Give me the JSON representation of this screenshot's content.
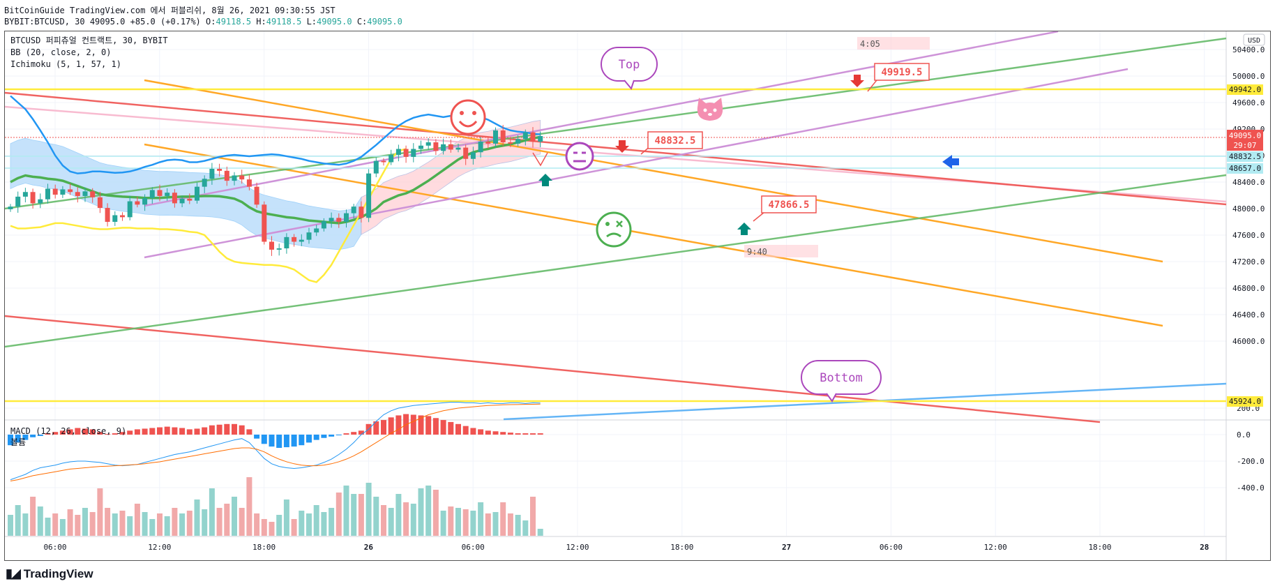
{
  "header": {
    "publish_line": "BitCoinGuide TradingView.com 에서 퍼블리쉬, 8월 26, 2021 09:30:55 JST",
    "symbol": "BYBIT:BTCUSD, 30",
    "last": "49095.0",
    "change": "+85.0 (+0.17%)",
    "o_label": "O:",
    "o": "49118.5",
    "h_label": "H:",
    "h": "49118.5",
    "l_label": "L:",
    "l": "49095.0",
    "c_label": "C:",
    "c": "49095.0"
  },
  "legend": {
    "line1": "BTCUSD 퍼피츄얼 컨트랙트, 30, BYBIT",
    "line2": "BB (20, close, 2, 0)",
    "line3": "Ichimoku (5, 1, 57, 1)",
    "macd": "MACD (12, 26, close, 9)",
    "volume": "볼륨"
  },
  "brand": "TradingView",
  "annotations": {
    "top": "Top",
    "bottom": "Bottom",
    "p1": "49919.5",
    "p2": "48832.5",
    "p3": "47866.5",
    "t1": "4:05",
    "t2": "9:40"
  },
  "price_tags": {
    "y1": "49942.0",
    "cur": "49095.0",
    "cur_time": "29:07",
    "p1": "48832.5",
    "p2": "48657.0",
    "y2": "45924.0"
  },
  "colors": {
    "up": "#26a69a",
    "down": "#ef5350",
    "bb": "#2196f3",
    "tenkan": "#4caf50",
    "lagging": "#ffeb3b",
    "cloud_bull": "#bbdefb",
    "cloud_bear": "#ffcdd2",
    "fib_orange": "#ffa726",
    "trend_green": "#66bb6a",
    "trend_red": "#ef5350",
    "trend_pink": "#f8bbd0",
    "trend_violet": "#ce93d8",
    "trend_blue": "#64b5f6",
    "level_yellow": "#ffeb3b"
  },
  "chart_data": [
    {
      "type": "candlestick",
      "title": "BTCUSD 퍼피츄얼 컨트랙트, 30, BYBIT",
      "currency": "USD",
      "ylim": [
        45800,
        50700
      ],
      "y_ticks": [
        46000.0,
        46400.0,
        46800.0,
        47200.0,
        47600.0,
        48000.0,
        48400.0,
        48800.0,
        49200.0,
        49600.0,
        50000.0,
        50400.0
      ],
      "x_ticks": [
        "06:00",
        "12:00",
        "18:00",
        "26",
        "06:00",
        "12:00",
        "18:00",
        "27",
        "06:00",
        "12:00",
        "18:00",
        "28"
      ],
      "close": [
        48030,
        48180,
        48250,
        48080,
        48140,
        48300,
        48210,
        48290,
        48250,
        48190,
        48260,
        48170,
        48010,
        47800,
        47900,
        47870,
        48110,
        48060,
        48160,
        48280,
        48190,
        48240,
        48080,
        48150,
        48120,
        48330,
        48450,
        48600,
        48570,
        48420,
        48500,
        48440,
        48330,
        48060,
        47500,
        47380,
        47400,
        47570,
        47500,
        47530,
        47640,
        47700,
        47810,
        47860,
        47800,
        47930,
        48030,
        47860,
        48530,
        48720,
        48700,
        48810,
        48900,
        48780,
        48900,
        48950,
        49000,
        48870,
        48970,
        48890,
        48920,
        48750,
        48850,
        49010,
        48980,
        49180,
        49000,
        48980,
        49050,
        49150,
        49010,
        49095
      ],
      "ichimoku_tenkan": [
        48400,
        48460,
        48500,
        48480,
        48470,
        48450,
        48440,
        48420,
        48380,
        48340,
        48300,
        48260,
        48220,
        48200,
        48190,
        48180,
        48175,
        48170,
        48160,
        48160,
        48160,
        48170,
        48175,
        48180,
        48180,
        48185,
        48190,
        48190,
        48185,
        48170,
        48150,
        48100,
        48020,
        47960,
        47930,
        47910,
        47890,
        47870,
        47860,
        47840,
        47820,
        47810,
        47800,
        47790,
        47780,
        47800,
        47830,
        47870,
        47930,
        48000,
        48100,
        48150,
        48200,
        48230,
        48280,
        48350,
        48420,
        48500,
        48580,
        48660,
        48740,
        48800,
        48850,
        48880,
        48900,
        48930,
        48950,
        48970,
        49000,
        49030,
        49060,
        49080
      ],
      "bb_basis_upper": [
        49700,
        49600,
        49500,
        49350,
        49180,
        49000,
        48800,
        48650,
        48560,
        48530,
        48540,
        48560,
        48560,
        48550,
        48540,
        48545,
        48560,
        48590,
        48630,
        48660,
        48700,
        48730,
        48740,
        48730,
        48700,
        48700,
        48720,
        48750,
        48780,
        48800,
        48810,
        48800,
        48790,
        48800,
        48810,
        48820,
        48810,
        48790,
        48770,
        48750,
        48720,
        48700,
        48680,
        48670,
        48660,
        48680,
        48720,
        48780,
        48870,
        48960,
        49060,
        49160,
        49250,
        49320,
        49370,
        49400,
        49420,
        49400,
        49380,
        49400,
        49420,
        49420,
        49400,
        49380,
        49340,
        49280,
        49220,
        49180,
        49160,
        49150,
        49130,
        49120
      ],
      "lagging": [
        47740,
        47700,
        47700,
        47710,
        47720,
        47750,
        47780,
        47780,
        47760,
        47740,
        47720,
        47700,
        47690,
        47690,
        47700,
        47710,
        47710,
        47700,
        47700,
        47700,
        47690,
        47690,
        47680,
        47670,
        47650,
        47640,
        47600,
        47480,
        47350,
        47250,
        47200,
        47180,
        47170,
        47160,
        47150,
        47150,
        47140,
        47120,
        47080,
        47000,
        46920,
        46890,
        47000,
        47150,
        47350,
        47550,
        47750,
        47950,
        48150,
        48350,
        48550,
        48750,
        48870,
        48900
      ]
    },
    {
      "type": "bar",
      "title": "MACD (12, 26, close, 9)",
      "y_ticks": [
        200.0,
        0.0,
        -200.0,
        -400.0
      ],
      "histogram": [
        -80,
        -60,
        -40,
        -20,
        -10,
        10,
        20,
        30,
        40,
        50,
        45,
        40,
        20,
        5,
        10,
        20,
        30,
        40,
        45,
        50,
        55,
        60,
        55,
        50,
        40,
        45,
        55,
        70,
        75,
        80,
        80,
        70,
        40,
        -30,
        -70,
        -90,
        -100,
        -95,
        -90,
        -80,
        -60,
        -40,
        -25,
        -15,
        -5,
        10,
        20,
        30,
        80,
        100,
        110,
        130,
        145,
        155,
        150,
        145,
        140,
        125,
        110,
        95,
        80,
        65,
        50,
        40,
        30,
        25,
        20,
        15,
        10,
        10,
        10,
        10
      ],
      "macd_line": [
        -340,
        -320,
        -300,
        -270,
        -250,
        -240,
        -230,
        -215,
        -205,
        -200,
        -200,
        -205,
        -210,
        -220,
        -230,
        -235,
        -230,
        -225,
        -210,
        -195,
        -180,
        -165,
        -150,
        -140,
        -130,
        -115,
        -100,
        -85,
        -70,
        -55,
        -40,
        -30,
        -60,
        -120,
        -180,
        -220,
        -240,
        -250,
        -255,
        -250,
        -240,
        -230,
        -210,
        -185,
        -150,
        -110,
        -60,
        0,
        40,
        100,
        150,
        180,
        200,
        210,
        220,
        225,
        230,
        235,
        240,
        245,
        245,
        240,
        240,
        235,
        240,
        235,
        235,
        240,
        240,
        235,
        240,
        238
      ],
      "signal_line": [
        -350,
        -340,
        -325,
        -310,
        -300,
        -290,
        -280,
        -270,
        -260,
        -255,
        -250,
        -245,
        -240,
        -238,
        -235,
        -232,
        -228,
        -225,
        -220,
        -212,
        -205,
        -195,
        -185,
        -175,
        -165,
        -155,
        -145,
        -135,
        -125,
        -115,
        -105,
        -100,
        -100,
        -110,
        -130,
        -160,
        -185,
        -205,
        -220,
        -230,
        -235,
        -235,
        -230,
        -220,
        -205,
        -185,
        -160,
        -130,
        -95,
        -60,
        -25,
        10,
        40,
        75,
        100,
        125,
        150,
        165,
        180,
        190,
        200,
        205,
        210,
        215,
        220,
        222,
        225,
        226,
        227,
        228,
        229,
        230
      ],
      "volume": [
        150,
        220,
        160,
        280,
        210,
        130,
        160,
        120,
        190,
        150,
        200,
        170,
        340,
        200,
        160,
        180,
        140,
        230,
        170,
        120,
        160,
        140,
        200,
        160,
        180,
        260,
        190,
        340,
        200,
        230,
        280,
        200,
        420,
        160,
        120,
        100,
        150,
        260,
        120,
        180,
        160,
        220,
        170,
        200,
        310,
        360,
        300,
        300,
        380,
        280,
        220,
        200,
        300,
        240,
        230,
        340,
        360,
        330,
        180,
        210,
        200,
        190,
        180,
        240,
        160,
        170,
        240,
        160,
        150,
        110,
        280,
        50
      ]
    }
  ]
}
